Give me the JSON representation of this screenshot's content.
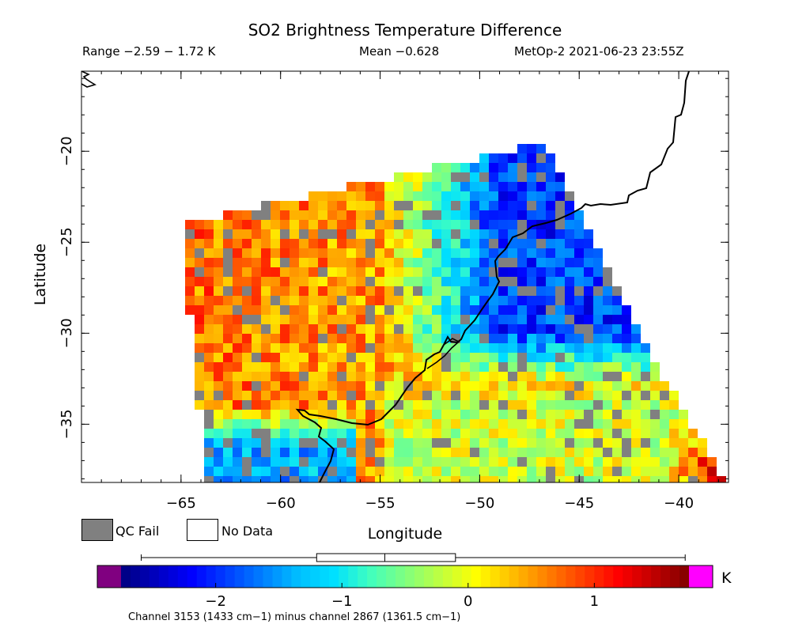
{
  "header": {
    "title": "SO2 Brightness Temperature Difference",
    "range_text": "Range −2.59 − 1.72 K",
    "mean_text": "Mean −0.628",
    "satellite_text": "MetOp-2 2021-06-23 23:55Z"
  },
  "chart_data": {
    "type": "heatmap",
    "title": "SO2 Brightness Temperature Difference",
    "xlabel": "Longitude",
    "ylabel": "Latitude",
    "xlim": [
      -70,
      -37.5
    ],
    "ylim": [
      -38.2,
      -15.6
    ],
    "x_ticks": [
      -65,
      -60,
      -55,
      -50,
      -45,
      -40
    ],
    "y_ticks": [
      -20,
      -25,
      -30,
      -35
    ],
    "x_tick_labels": [
      "−65",
      "−60",
      "−55",
      "−50",
      "−45",
      "−40"
    ],
    "y_tick_labels": [
      "−20",
      "−25",
      "−30",
      "−35"
    ],
    "value_range": [
      -2.59,
      1.72
    ],
    "mean": -0.628,
    "units": "K",
    "swath_lon_lat": [
      [
        -65.0,
        -24.0
      ],
      [
        -46.6,
        -19.5
      ],
      [
        -41.3,
        -31.5
      ],
      [
        -37.6,
        -38.2
      ],
      [
        -63.7,
        -38.2
      ]
    ],
    "regional_pattern": [
      {
        "region": "west (lon < -60)",
        "typical_value": 0.7
      },
      {
        "region": "central (-60 to -52)",
        "typical_value": -0.2
      },
      {
        "region": "northeast ocean (lon > -50, lat > -31)",
        "typical_value": -1.9
      },
      {
        "region": "southeast (lon > -46, lat < -33)",
        "typical_value": -0.1
      },
      {
        "region": "far southeast corner",
        "typical_value": 1.3
      }
    ]
  },
  "colorbar": {
    "min": -2.75,
    "max": 1.75,
    "ticks": [
      -2,
      -1,
      0,
      1
    ],
    "tick_labels": [
      "−2",
      "−1",
      "0",
      "1"
    ],
    "unit": "K",
    "colors": [
      "#00007f",
      "#0000c0",
      "#0000ff",
      "#0040ff",
      "#0080ff",
      "#00bfff",
      "#00e0ff",
      "#40ffbf",
      "#80ff80",
      "#bfff40",
      "#ffff00",
      "#ffbf00",
      "#ff8000",
      "#ff4000",
      "#ff0000",
      "#c00000",
      "#7f0000"
    ],
    "under_color": "#800080",
    "over_color": "#ff00ff",
    "boxplot": {
      "whisker_low": -2.59,
      "q1": -1.2,
      "median": -0.66,
      "q3": -0.1,
      "whisker_high": 1.72
    }
  },
  "legend": {
    "qc_fail_label": "QC Fail",
    "qc_fail_color": "#808080",
    "no_data_label": "No Data",
    "no_data_color": "#ffffff"
  },
  "footer": "Channel 3153 (1433 cm−1) minus channel 2867 (1361.5 cm−1)"
}
